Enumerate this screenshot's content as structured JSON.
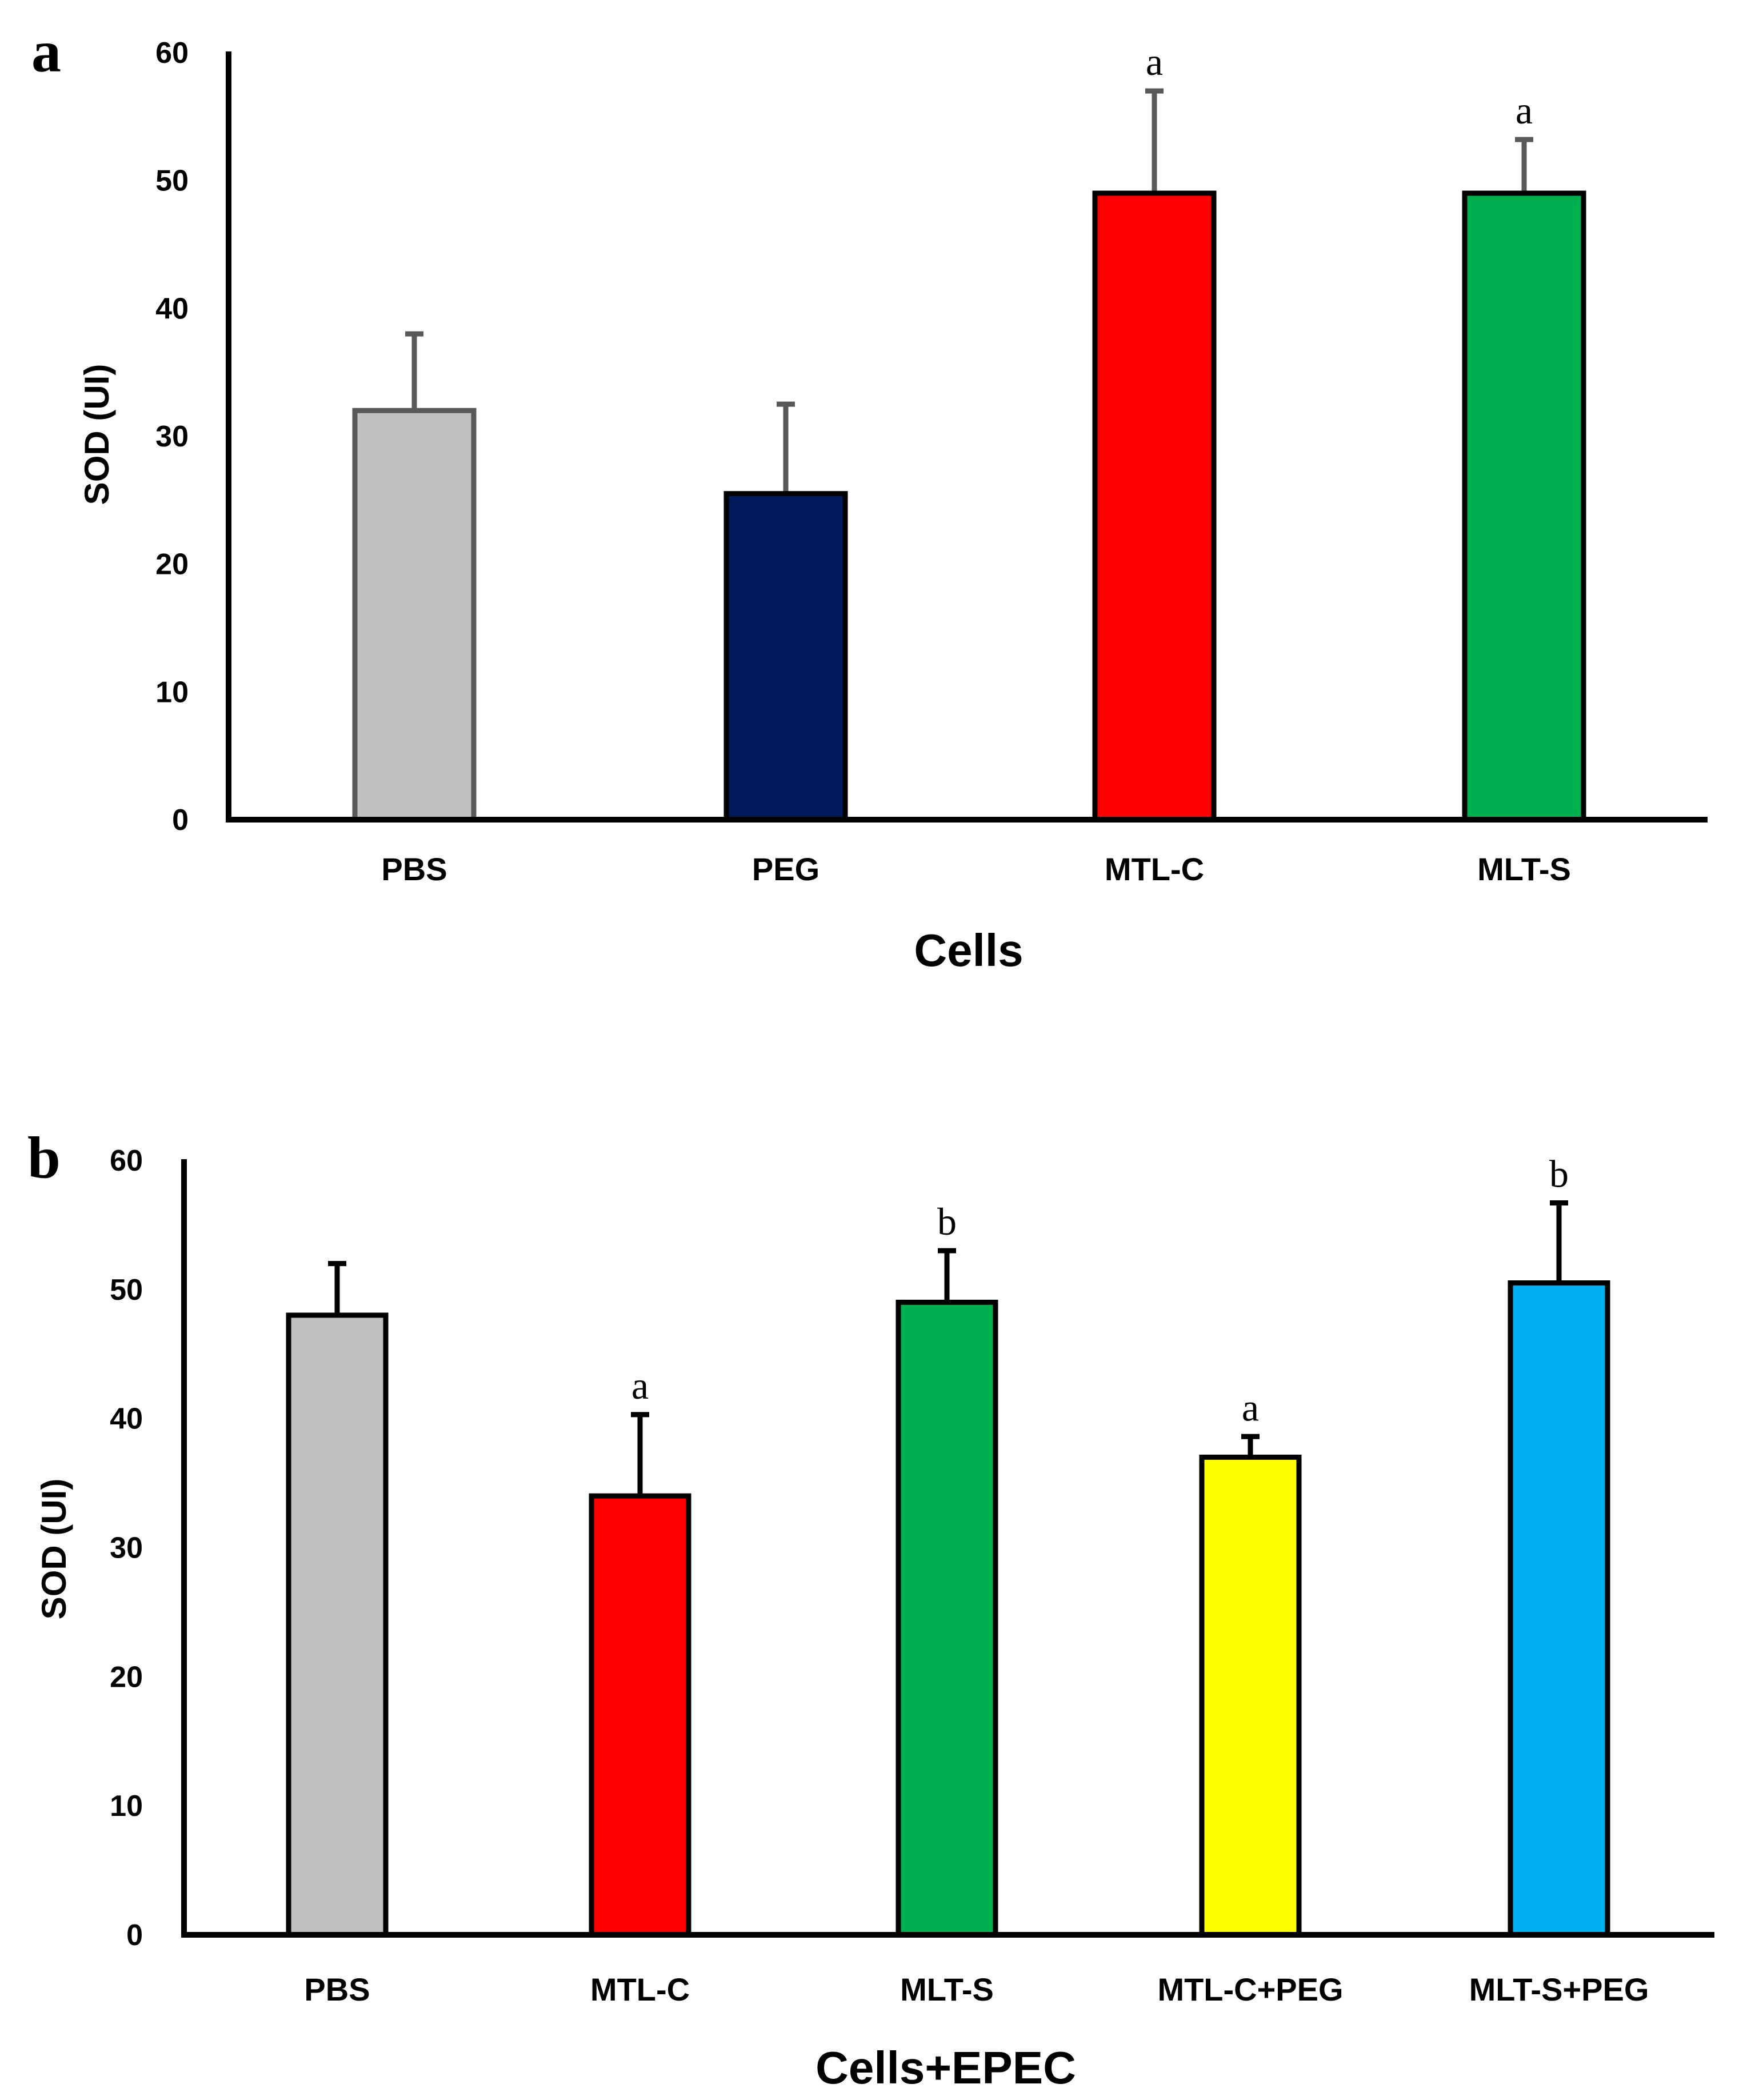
{
  "chart_data": [
    {
      "type": "bar",
      "panel_label": "a",
      "title": "",
      "xlabel": "Cells",
      "ylabel": "SOD (UI)",
      "ylim": [
        0,
        60
      ],
      "yticks": [
        0,
        10,
        20,
        30,
        40,
        50,
        60
      ],
      "ytick_labels": [
        "0",
        "10",
        "20",
        "30",
        "40",
        "50",
        "60"
      ],
      "categories": [
        "PBS",
        "PEG",
        "MTL-C",
        "MLT-S"
      ],
      "values": [
        32,
        25.5,
        49,
        49
      ],
      "errors": [
        6,
        7,
        8,
        4.2
      ],
      "significance": [
        "",
        "",
        "a",
        "a"
      ],
      "colors": [
        "#c0c0c0",
        "#001a5c",
        "#ff0000",
        "#00b050"
      ],
      "edge_colors": [
        "#595959",
        "#000000",
        "#000000",
        "#000000"
      ],
      "error_colors": [
        "#595959",
        "#595959",
        "#595959",
        "#595959"
      ]
    },
    {
      "type": "bar",
      "panel_label": "b",
      "title": "",
      "xlabel": "Cells+EPEC",
      "ylabel": "SOD (UI)",
      "ylim": [
        0,
        60
      ],
      "yticks": [
        0,
        10,
        20,
        30,
        40,
        50,
        60
      ],
      "ytick_labels": [
        "0",
        "10",
        "20",
        "30",
        "40",
        "50",
        "60"
      ],
      "categories": [
        "PBS",
        "MTL-C",
        "MLT-S",
        "MTL-C+PEG",
        "MLT-S+PEG"
      ],
      "values": [
        48,
        34,
        49,
        37,
        50.5
      ],
      "errors": [
        4,
        6.3,
        4,
        1.6,
        6.2
      ],
      "significance": [
        "",
        "a",
        "b",
        "a",
        "b"
      ],
      "colors": [
        "#c0c0c0",
        "#ff0000",
        "#00b050",
        "#ffff00",
        "#00b0f0"
      ],
      "edge_colors": [
        "#000000",
        "#000000",
        "#000000",
        "#000000",
        "#000000"
      ],
      "error_colors": [
        "#000000",
        "#000000",
        "#000000",
        "#000000",
        "#000000"
      ]
    }
  ]
}
